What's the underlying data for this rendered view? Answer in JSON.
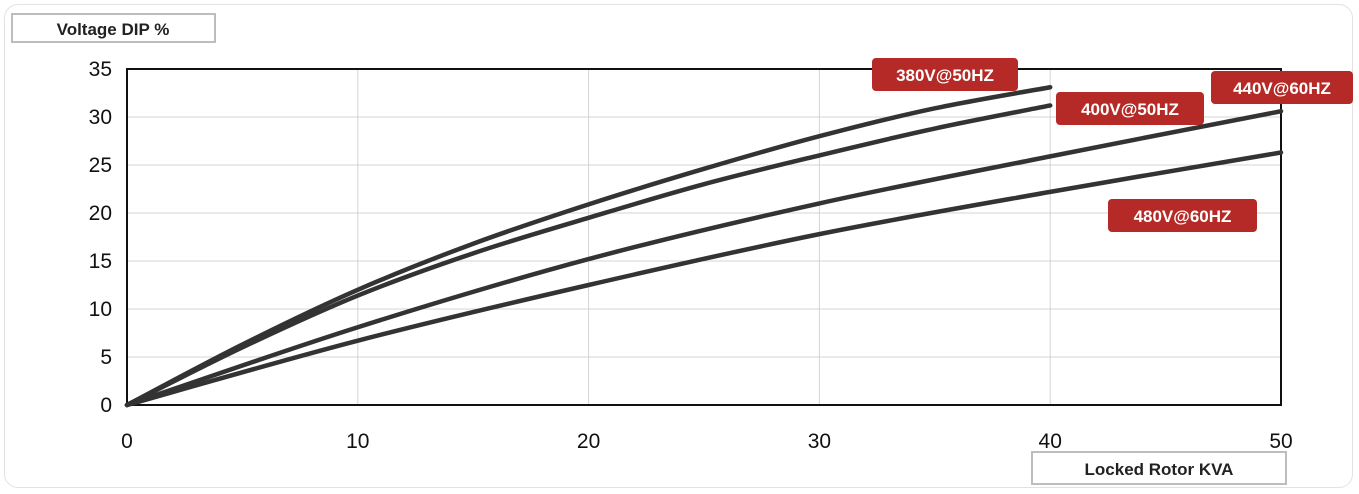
{
  "chart_data": {
    "type": "line",
    "ylabel": "Voltage DIP %",
    "xlabel": "Locked Rotor KVA",
    "xlim": [
      0,
      50
    ],
    "ylim": [
      0,
      35
    ],
    "xticks": [
      0,
      10,
      20,
      30,
      40,
      50
    ],
    "yticks": [
      0,
      5,
      10,
      15,
      20,
      25,
      30,
      35
    ],
    "grid": true,
    "label_color": "#b52a26",
    "line_color": "#333333",
    "series": [
      {
        "name": "380V@50HZ",
        "x": [
          0,
          5,
          10,
          15,
          20,
          25,
          30,
          35,
          40
        ],
        "y": [
          0,
          6.3,
          12,
          16.8,
          20.9,
          24.6,
          28,
          30.9,
          33.1
        ]
      },
      {
        "name": "400V@50HZ",
        "x": [
          0,
          5,
          10,
          15,
          20,
          25,
          30,
          35,
          40
        ],
        "y": [
          0,
          6.0,
          11.4,
          15.8,
          19.5,
          23,
          26,
          28.8,
          31.2
        ]
      },
      {
        "name": "440V@60HZ",
        "x": [
          0,
          10,
          20,
          30,
          40,
          50
        ],
        "y": [
          0,
          8.1,
          15.2,
          21,
          25.9,
          30.6
        ]
      },
      {
        "name": "480V@60HZ",
        "x": [
          0,
          10,
          20,
          30,
          40,
          50
        ],
        "y": [
          0,
          6.7,
          12.5,
          17.8,
          22.2,
          26.3
        ]
      }
    ]
  }
}
